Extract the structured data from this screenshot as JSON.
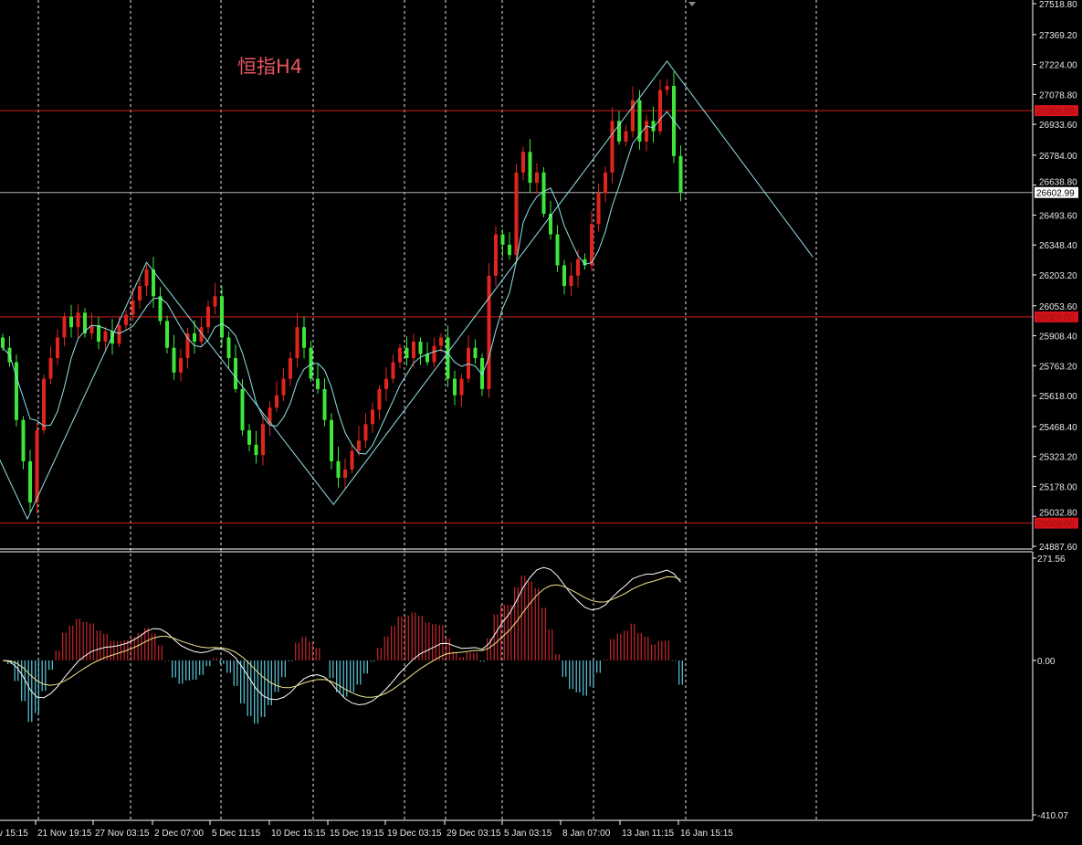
{
  "chart_data": {
    "type": "candlestick",
    "title": "恒指H4",
    "colors": {
      "background": "#000000",
      "up": "#e0241e",
      "down": "#3ee63a",
      "ma": "#8fe3e6",
      "zigzag": "#8fe3e6",
      "level": "#d11f1f",
      "current": "#b0b0b0",
      "hist_pos": "#c9282d",
      "hist_neg": "#5ccbdc",
      "macd_line": "#ffffff",
      "signal_line": "#f0e68c",
      "grid": "#ffffff"
    },
    "price_axis": {
      "ylim": [
        24887.6,
        27518.8
      ],
      "ticks": [
        "27518.80",
        "27369.20",
        "27224.00",
        "27078.80",
        "26933.60",
        "26784.00",
        "26638.80",
        "26493.60",
        "26348.40",
        "26203.20",
        "26053.60",
        "25908.40",
        "25763.20",
        "25618.00",
        "25468.40",
        "25323.20",
        "25178.00",
        "25032.80",
        "24887.60"
      ]
    },
    "levels": [
      {
        "value": 27000,
        "label": "27000.00"
      },
      {
        "value": 26000,
        "label": "26000.00"
      },
      {
        "value": 25000,
        "label": "25000.00"
      }
    ],
    "current_price": {
      "value": 26602.99,
      "label": "26602.99"
    },
    "time_labels": [
      "v 15:15",
      "21 Nov 19:15",
      "27 Nov 03:15",
      "2 Dec 07:00",
      "5 Dec 11:15",
      "10 Dec 15:15",
      "15 Dec 19:15",
      "19 Dec 03:15",
      "29 Dec 03:15",
      "5 Jan 03:15",
      "8 Jan 07:00",
      "13 Jan 11:15",
      "16 Jan 15:15"
    ],
    "closes": [
      25850,
      25780,
      25500,
      25300,
      25100,
      25450,
      25700,
      25800,
      25900,
      26000,
      25950,
      26020,
      25920,
      25960,
      25880,
      25930,
      25870,
      25960,
      26010,
      26080,
      26150,
      26230,
      26100,
      25980,
      25850,
      25730,
      25800,
      25920,
      25880,
      25950,
      26050,
      26100,
      25900,
      25800,
      25650,
      25450,
      25380,
      25330,
      25480,
      25560,
      25620,
      25700,
      25800,
      25950,
      25850,
      25700,
      25650,
      25500,
      25300,
      25220,
      25260,
      25350,
      25400,
      25480,
      25550,
      25650,
      25700,
      25780,
      25850,
      25800,
      25880,
      25820,
      25780,
      25860,
      25900,
      25700,
      25620,
      25700,
      25850,
      25800,
      25650,
      26200,
      26400,
      26350,
      26300,
      26700,
      26800,
      26650,
      26700,
      26500,
      26400,
      26250,
      26150,
      26200,
      26280,
      26250,
      26450,
      26600,
      26700,
      26950,
      26850,
      26900,
      27050,
      26850,
      26950,
      26900,
      27100,
      27120,
      26780,
      26603
    ],
    "zigzag": [
      [
        -4,
        25560
      ],
      [
        3.6,
        25020
      ],
      [
        21,
        26265
      ],
      [
        48.3,
        25090
      ],
      [
        97,
        27240
      ],
      [
        118.3,
        26290
      ]
    ],
    "indicator": {
      "ylim": [
        -410.07,
        271.56
      ],
      "ticks": [
        "271.56",
        "0.00",
        "-410.07"
      ]
    }
  }
}
